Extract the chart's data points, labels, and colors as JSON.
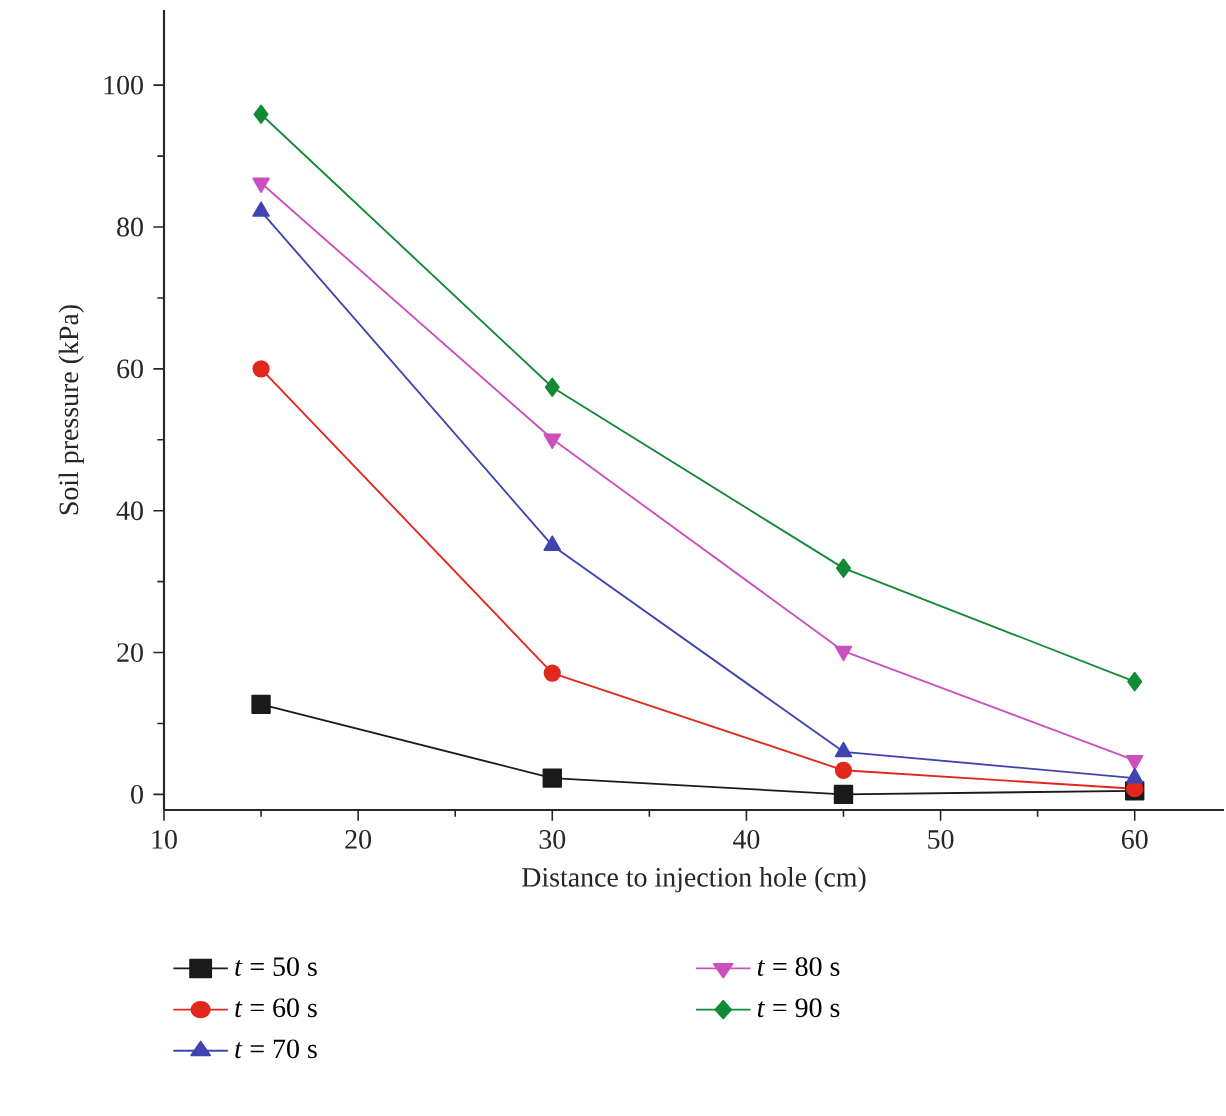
{
  "chart_data": {
    "type": "line",
    "xlabel": "Distance to injection hole (cm)",
    "ylabel": "Soil pressure (kPa)",
    "x": [
      15,
      30,
      45,
      60
    ],
    "xlim": [
      10,
      64.6
    ],
    "xticks": [
      10,
      20,
      30,
      40,
      50,
      60
    ],
    "ylim": [
      -2.2,
      110.6
    ],
    "yticks": [
      0,
      20,
      40,
      60,
      80,
      100
    ],
    "grid": false,
    "legend": "bottom",
    "line_style": "solid",
    "series": [
      {
        "name": "*t* = 50 s",
        "color": "#1a1a1a",
        "marker": "square",
        "values": [
          12.7,
          2.3,
          0,
          0.5
        ]
      },
      {
        "name": "*t* = 60 s",
        "color": "#e2281c",
        "marker": "circle",
        "values": [
          60,
          17.1,
          3.4,
          0.8
        ]
      },
      {
        "name": "*t* = 70 s",
        "color": "#3f44b0",
        "marker": "triangle",
        "values": [
          82.2,
          35.1,
          6.0,
          2.3
        ]
      },
      {
        "name": "*t* = 80 s",
        "color": "#cc4fbf",
        "marker": "triangle down",
        "values": [
          86.2,
          50.1,
          20.2,
          4.8
        ]
      },
      {
        "name": "*t* = 90 s",
        "color": "#138a35",
        "marker": "diamond",
        "values": [
          95.9,
          57.4,
          31.9,
          15.9
        ]
      }
    ]
  }
}
